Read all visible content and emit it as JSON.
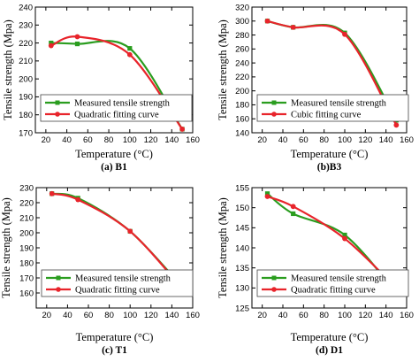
{
  "chart_data": [
    {
      "type": "line",
      "caption": "(a) B1",
      "xlabel": "Temperature (°C)",
      "ylabel": "Tensile strength (Mpa)",
      "xlim": [
        10,
        160
      ],
      "ylim": [
        170,
        240
      ],
      "xticks": [
        20,
        40,
        60,
        80,
        100,
        120,
        140,
        160
      ],
      "yticks": [
        170,
        180,
        190,
        200,
        210,
        220,
        230,
        240
      ],
      "legend_position": "bottom-left",
      "series": [
        {
          "name": "Measured tensile strength",
          "color": "#2a9d1f",
          "marker": "square",
          "x": [
            25,
            50,
            100,
            150
          ],
          "y": [
            220,
            219.5,
            217,
            172
          ]
        },
        {
          "name": "Quadratic fitting curve",
          "color": "#e8242b",
          "marker": "circle",
          "x": [
            25,
            50,
            100,
            150
          ],
          "y": [
            218.5,
            223.5,
            213.5,
            172
          ]
        }
      ]
    },
    {
      "type": "line",
      "caption": "(b)B3",
      "xlabel": "Temperature (°C)",
      "ylabel": "Tensile strength (Mpa)",
      "xlim": [
        10,
        160
      ],
      "ylim": [
        140,
        320
      ],
      "xticks": [
        20,
        40,
        60,
        80,
        100,
        120,
        140,
        160
      ],
      "yticks": [
        140,
        160,
        180,
        200,
        220,
        240,
        260,
        280,
        300,
        320
      ],
      "legend_position": "bottom-left",
      "series": [
        {
          "name": "Measured tensile strength",
          "color": "#2a9d1f",
          "marker": "square",
          "x": [
            25,
            50,
            100,
            150
          ],
          "y": [
            300,
            291,
            283,
            158
          ]
        },
        {
          "name": "Cubic fitting curve",
          "color": "#e8242b",
          "marker": "circle",
          "x": [
            25,
            50,
            100,
            150
          ],
          "y": [
            300,
            291,
            281,
            151
          ]
        }
      ]
    },
    {
      "type": "line",
      "caption": "(c) T1",
      "xlabel": "Temperature (°C)",
      "ylabel": "Tensile strength (Mpa)",
      "xlim": [
        10,
        160
      ],
      "ylim": [
        150,
        230
      ],
      "xticks": [
        20,
        40,
        60,
        80,
        100,
        120,
        140,
        160
      ],
      "yticks": [
        160,
        170,
        180,
        190,
        200,
        210,
        220,
        230
      ],
      "legend_position": "bottom-left",
      "series": [
        {
          "name": "Measured tensile strength",
          "color": "#2a9d1f",
          "marker": "square",
          "x": [
            25,
            50,
            100,
            150
          ],
          "y": [
            226,
            223,
            201,
            164
          ]
        },
        {
          "name": "Quadratic fitting curve",
          "color": "#e8242b",
          "marker": "circle",
          "x": [
            25,
            50,
            100,
            150
          ],
          "y": [
            226,
            222,
            201,
            163
          ]
        }
      ]
    },
    {
      "type": "line",
      "caption": "(d) D1",
      "xlabel": "Temperature (°C)",
      "ylabel": "Tensile strength (Mpa)",
      "xlim": [
        10,
        160
      ],
      "ylim": [
        125,
        155
      ],
      "xticks": [
        20,
        40,
        60,
        80,
        100,
        120,
        140,
        160
      ],
      "yticks": [
        125,
        130,
        135,
        140,
        145,
        150,
        155
      ],
      "legend_position": "bottom-left",
      "series": [
        {
          "name": "Measured tensile strength",
          "color": "#2a9d1f",
          "marker": "square",
          "x": [
            25,
            50,
            100,
            150
          ],
          "y": [
            153.5,
            148.5,
            143.2,
            128.8
          ]
        },
        {
          "name": "Quadratic fitting curve",
          "color": "#e8242b",
          "marker": "circle",
          "x": [
            25,
            50,
            100,
            150
          ],
          "y": [
            152.8,
            150.3,
            142.3,
            130
          ]
        }
      ]
    }
  ]
}
